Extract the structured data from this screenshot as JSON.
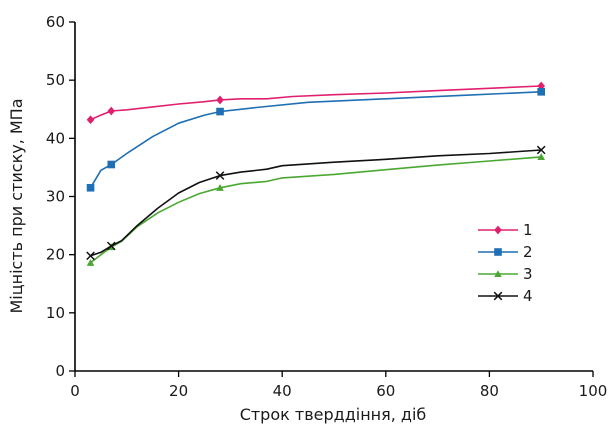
{
  "chart_data": {
    "type": "line",
    "xlabel": "Строк тверддіння, діб",
    "ylabel": "Міцність при стиску, МПа",
    "xlim": [
      0,
      100
    ],
    "ylim": [
      0,
      60
    ],
    "xticks": [
      "0",
      "20",
      "40",
      "60",
      "80",
      "100"
    ],
    "yticks": [
      "0",
      "10",
      "20",
      "30",
      "40",
      "50",
      "60"
    ],
    "grid": false,
    "legend_position": "right",
    "series": [
      {
        "name": "1",
        "color": "#e0206e",
        "marker": "diamond",
        "markers": [
          [
            3,
            43.2
          ],
          [
            7,
            44.7
          ],
          [
            28,
            46.6
          ],
          [
            90,
            49.0
          ]
        ],
        "curve": [
          [
            3,
            43.2
          ],
          [
            5,
            44.0
          ],
          [
            7,
            44.7
          ],
          [
            10,
            44.9
          ],
          [
            15,
            45.4
          ],
          [
            20,
            45.9
          ],
          [
            25,
            46.3
          ],
          [
            28,
            46.6
          ],
          [
            32,
            46.8
          ],
          [
            37,
            46.8
          ],
          [
            42,
            47.2
          ],
          [
            50,
            47.5
          ],
          [
            60,
            47.8
          ],
          [
            70,
            48.2
          ],
          [
            80,
            48.6
          ],
          [
            90,
            49.0
          ]
        ]
      },
      {
        "name": "2",
        "color": "#1f6fb4",
        "marker": "square",
        "markers": [
          [
            3,
            31.5
          ],
          [
            7,
            35.5
          ],
          [
            28,
            44.6
          ],
          [
            90,
            48.0
          ]
        ],
        "curve": [
          [
            3,
            31.5
          ],
          [
            5,
            34.5
          ],
          [
            7,
            35.5
          ],
          [
            10,
            37.4
          ],
          [
            15,
            40.3
          ],
          [
            20,
            42.6
          ],
          [
            25,
            44.0
          ],
          [
            28,
            44.6
          ],
          [
            35,
            45.3
          ],
          [
            45,
            46.2
          ],
          [
            60,
            46.8
          ],
          [
            75,
            47.4
          ],
          [
            90,
            48.0
          ]
        ]
      },
      {
        "name": "3",
        "color": "#4aa832",
        "marker": "triangle",
        "markers": [
          [
            3,
            18.6
          ],
          [
            7,
            21.3
          ],
          [
            28,
            31.5
          ],
          [
            90,
            36.8
          ]
        ],
        "curve": [
          [
            3,
            18.6
          ],
          [
            5,
            20.0
          ],
          [
            7,
            21.3
          ],
          [
            9,
            22.3
          ],
          [
            12,
            24.8
          ],
          [
            16,
            27.2
          ],
          [
            20,
            29.0
          ],
          [
            24,
            30.5
          ],
          [
            28,
            31.5
          ],
          [
            32,
            32.2
          ],
          [
            37,
            32.6
          ],
          [
            40,
            33.2
          ],
          [
            50,
            33.8
          ],
          [
            60,
            34.6
          ],
          [
            70,
            35.4
          ],
          [
            80,
            36.1
          ],
          [
            90,
            36.8
          ]
        ]
      },
      {
        "name": "4",
        "color": "#111111",
        "marker": "x",
        "markers": [
          [
            3,
            19.8
          ],
          [
            7,
            21.5
          ],
          [
            28,
            33.6
          ],
          [
            90,
            38.0
          ]
        ],
        "curve": [
          [
            3,
            19.8
          ],
          [
            5,
            20.4
          ],
          [
            7,
            21.5
          ],
          [
            9,
            22.4
          ],
          [
            12,
            25.0
          ],
          [
            16,
            28.0
          ],
          [
            20,
            30.6
          ],
          [
            24,
            32.4
          ],
          [
            28,
            33.6
          ],
          [
            32,
            34.2
          ],
          [
            37,
            34.7
          ],
          [
            40,
            35.3
          ],
          [
            50,
            35.9
          ],
          [
            60,
            36.4
          ],
          [
            70,
            37.0
          ],
          [
            80,
            37.4
          ],
          [
            90,
            38.0
          ]
        ]
      }
    ]
  }
}
